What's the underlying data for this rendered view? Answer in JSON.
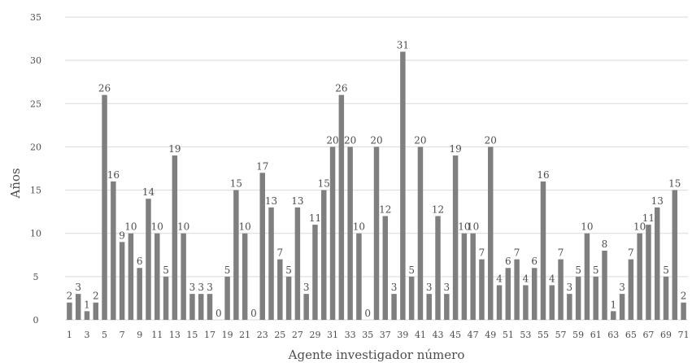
{
  "chart_data": {
    "type": "bar",
    "xlabel": "Agente investigador número",
    "ylabel": "Años",
    "ylim": [
      0,
      35
    ],
    "yticks": [
      0,
      5,
      10,
      15,
      20,
      25,
      30,
      35
    ],
    "xtick_labels": [
      "1",
      "3",
      "5",
      "7",
      "9",
      "11",
      "13",
      "15",
      "17",
      "19",
      "21",
      "23",
      "25",
      "27",
      "29",
      "31",
      "33",
      "35",
      "37",
      "39",
      "41",
      "43",
      "45",
      "47",
      "49",
      "51",
      "53",
      "55",
      "57",
      "59",
      "61",
      "63",
      "65",
      "67",
      "69",
      "71"
    ],
    "grid": true,
    "legend": "none",
    "bar_color": "#7f7f7f",
    "categories": [
      1,
      2,
      3,
      4,
      5,
      6,
      7,
      8,
      9,
      10,
      11,
      12,
      13,
      14,
      15,
      16,
      17,
      18,
      19,
      20,
      21,
      22,
      23,
      24,
      25,
      26,
      27,
      28,
      29,
      30,
      31,
      32,
      33,
      34,
      35,
      36,
      37,
      38,
      39,
      40,
      41,
      42,
      43,
      44,
      45,
      46,
      47,
      48,
      49,
      50,
      51,
      52,
      53,
      54,
      55,
      56,
      57,
      58,
      59,
      60,
      61,
      62,
      63,
      64,
      65,
      66,
      67,
      68,
      69,
      70,
      71
    ],
    "values": [
      2,
      3,
      1,
      2,
      26,
      16,
      9,
      10,
      6,
      14,
      10,
      5,
      19,
      10,
      3,
      3,
      3,
      0,
      5,
      15,
      10,
      0,
      17,
      13,
      7,
      5,
      13,
      3,
      11,
      15,
      20,
      26,
      20,
      10,
      0,
      20,
      12,
      3,
      31,
      5,
      20,
      3,
      12,
      3,
      19,
      10,
      10,
      7,
      20,
      4,
      6,
      7,
      4,
      6,
      16,
      4,
      7,
      3,
      5,
      10,
      5,
      8,
      1,
      3,
      7,
      10,
      11,
      13,
      5,
      15,
      2
    ]
  }
}
